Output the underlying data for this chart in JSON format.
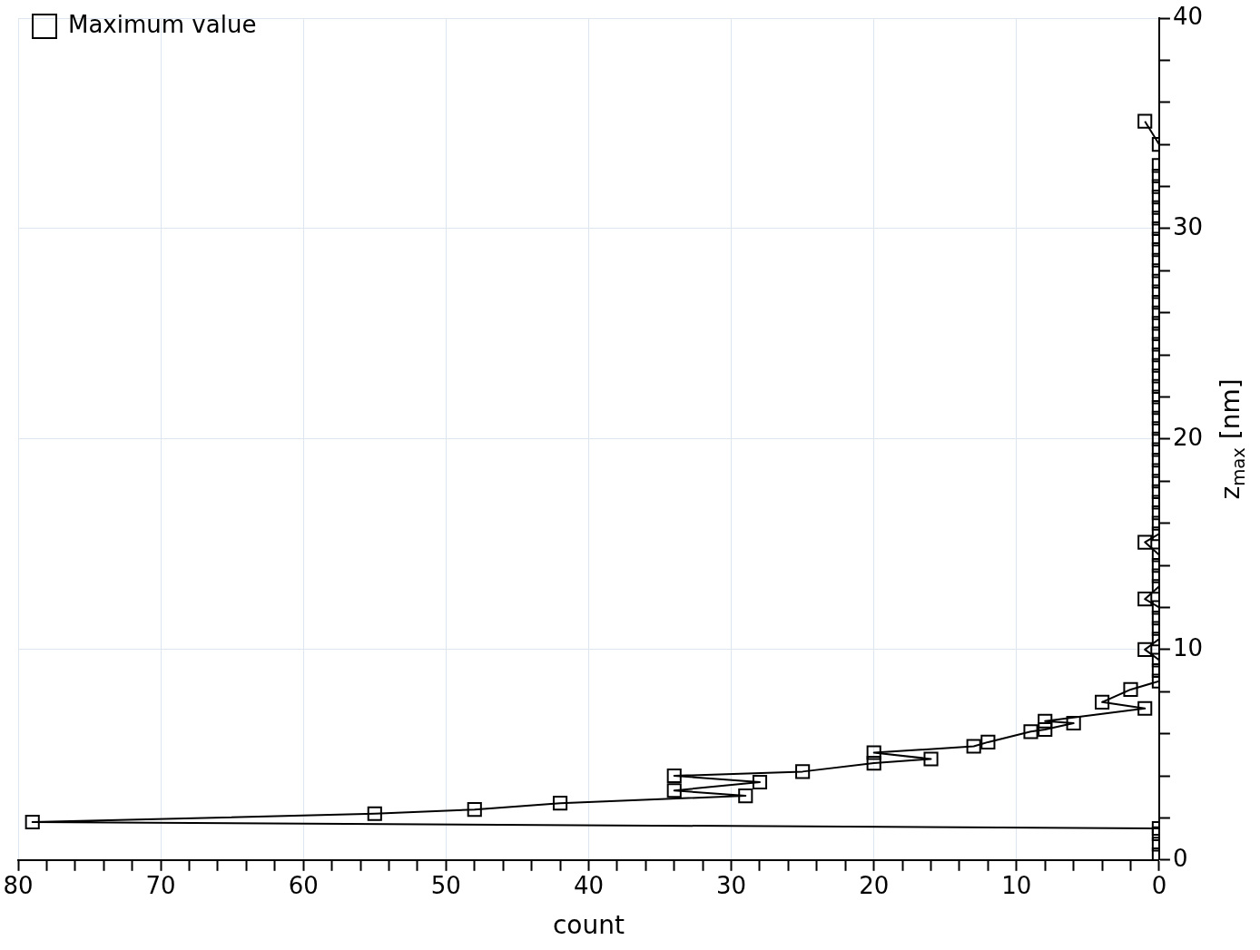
{
  "chart_data": {
    "type": "line",
    "xlabel": "count",
    "ylabel": "z$_{max}$ [nm]",
    "xlim": [
      80,
      0
    ],
    "ylim": [
      0,
      40
    ],
    "xticks": [
      0,
      {
        "value": 2,
        "label": null
      },
      {
        "value": 4,
        "label": null
      },
      {
        "value": 6,
        "label": null
      },
      {
        "value": 8,
        "label": null
      },
      10,
      {
        "value": 12,
        "label": null
      },
      {
        "value": 14,
        "label": null
      },
      {
        "value": 16,
        "label": null
      },
      {
        "value": 18,
        "label": null
      },
      20,
      {
        "value": 22,
        "label": null
      },
      {
        "value": 24,
        "label": null
      },
      {
        "value": 26,
        "label": null
      },
      {
        "value": 28,
        "label": null
      },
      30,
      {
        "value": 32,
        "label": null
      },
      {
        "value": 34,
        "label": null
      },
      {
        "value": 36,
        "label": null
      },
      {
        "value": 38,
        "label": null
      },
      40,
      {
        "value": 42,
        "label": null
      },
      {
        "value": 44,
        "label": null
      },
      {
        "value": 46,
        "label": null
      },
      {
        "value": 48,
        "label": null
      },
      50,
      {
        "value": 52,
        "label": null
      },
      {
        "value": 54,
        "label": null
      },
      {
        "value": 56,
        "label": null
      },
      {
        "value": 58,
        "label": null
      },
      60,
      {
        "value": 62,
        "label": null
      },
      {
        "value": 64,
        "label": null
      },
      {
        "value": 66,
        "label": null
      },
      {
        "value": 68,
        "label": null
      },
      70,
      {
        "value": 72,
        "label": null
      },
      {
        "value": 74,
        "label": null
      },
      {
        "value": 76,
        "label": null
      },
      {
        "value": 78,
        "label": null
      },
      80
    ],
    "yticks": [
      0,
      {
        "value": 2,
        "label": null
      },
      {
        "value": 4,
        "label": null
      },
      {
        "value": 6,
        "label": null
      },
      {
        "value": 8,
        "label": null
      },
      10,
      {
        "value": 12,
        "label": null
      },
      {
        "value": 14,
        "label": null
      },
      {
        "value": 16,
        "label": null
      },
      {
        "value": 18,
        "label": null
      },
      20,
      {
        "value": 22,
        "label": null
      },
      {
        "value": 24,
        "label": null
      },
      {
        "value": 26,
        "label": null
      },
      {
        "value": 28,
        "label": null
      },
      30,
      {
        "value": 32,
        "label": null
      },
      {
        "value": 34,
        "label": null
      },
      {
        "value": 36,
        "label": null
      },
      {
        "value": 38,
        "label": null
      },
      40
    ],
    "grid": true,
    "legend": "top left",
    "marker": "square",
    "line_style": "solid",
    "series": [
      {
        "name": "Maximum value",
        "color": "#000000",
        "x": [
          0,
          0,
          0,
          0,
          79,
          55,
          48,
          42,
          29,
          34,
          28,
          34,
          25,
          20,
          16,
          20,
          13,
          12,
          9,
          8,
          6,
          8,
          1,
          4,
          2,
          0,
          0,
          0,
          1,
          0,
          0,
          0,
          0,
          1,
          0,
          0,
          0,
          0,
          1,
          0,
          0,
          0,
          0,
          0,
          0,
          0,
          0,
          0,
          0,
          0,
          0,
          0,
          0,
          0,
          0,
          0,
          0,
          0,
          0,
          0,
          0,
          0,
          0,
          0,
          0,
          0,
          0,
          0,
          0,
          0,
          0,
          0,
          0,
          0,
          0,
          0,
          1
        ],
        "values": [
          0.25,
          0.75,
          1.25,
          1.5,
          1.8,
          2.2,
          2.4,
          2.7,
          3.05,
          3.3,
          3.7,
          4.0,
          4.2,
          4.6,
          4.8,
          5.1,
          5.4,
          5.6,
          6.1,
          6.2,
          6.5,
          6.6,
          7.2,
          7.5,
          8.1,
          8.5,
          9.0,
          9.5,
          10.0,
          10.5,
          11.0,
          11.5,
          12.0,
          12.4,
          13.0,
          13.5,
          14.0,
          14.5,
          15.1,
          15.5,
          16.0,
          16.5,
          17.0,
          17.5,
          18.0,
          18.5,
          19.0,
          19.5,
          20.0,
          20.5,
          21.0,
          21.5,
          22.0,
          22.5,
          23.0,
          23.5,
          24.0,
          24.5,
          25.0,
          25.5,
          26.0,
          26.5,
          27.0,
          27.5,
          28.0,
          28.5,
          29.0,
          29.5,
          30.0,
          30.5,
          31.0,
          31.5,
          32.0,
          32.5,
          33.0,
          34.0,
          35.1
        ]
      }
    ]
  }
}
